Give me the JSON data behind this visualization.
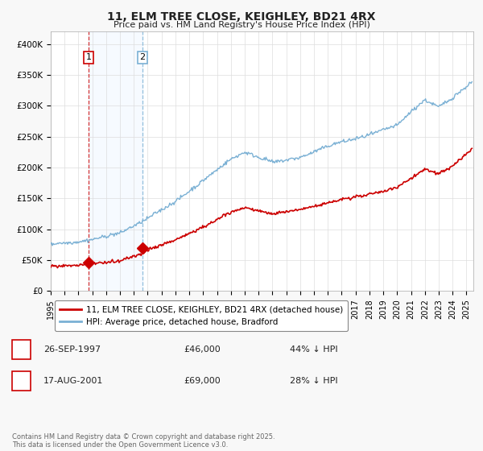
{
  "title": "11, ELM TREE CLOSE, KEIGHLEY, BD21 4RX",
  "subtitle": "Price paid vs. HM Land Registry's House Price Index (HPI)",
  "ylabel_ticks": [
    "£0",
    "£50K",
    "£100K",
    "£150K",
    "£200K",
    "£250K",
    "£300K",
    "£350K",
    "£400K"
  ],
  "ytick_values": [
    0,
    50000,
    100000,
    150000,
    200000,
    250000,
    300000,
    350000,
    400000
  ],
  "ylim": [
    0,
    420000
  ],
  "xlim_start": 1995.0,
  "xlim_end": 2025.5,
  "xtick_years": [
    1995,
    1996,
    1997,
    1998,
    1999,
    2000,
    2001,
    2002,
    2003,
    2004,
    2005,
    2006,
    2007,
    2008,
    2009,
    2010,
    2011,
    2012,
    2013,
    2014,
    2015,
    2016,
    2017,
    2018,
    2019,
    2020,
    2021,
    2022,
    2023,
    2024,
    2025
  ],
  "sale1_x": 1997.74,
  "sale1_y": 46000,
  "sale1_label": "1",
  "sale2_x": 2001.63,
  "sale2_y": 69000,
  "sale2_label": "2",
  "sale_color": "#cc0000",
  "hpi_color": "#7ab0d4",
  "shade_color": "#ddeeff",
  "legend_house_label": "11, ELM TREE CLOSE, KEIGHLEY, BD21 4RX (detached house)",
  "legend_hpi_label": "HPI: Average price, detached house, Bradford",
  "table_rows": [
    [
      "1",
      "26-SEP-1997",
      "£46,000",
      "44% ↓ HPI"
    ],
    [
      "2",
      "17-AUG-2001",
      "£69,000",
      "28% ↓ HPI"
    ]
  ],
  "footnote": "Contains HM Land Registry data © Crown copyright and database right 2025.\nThis data is licensed under the Open Government Licence v3.0.",
  "background_color": "#f8f8f8",
  "plot_bg_color": "#ffffff"
}
